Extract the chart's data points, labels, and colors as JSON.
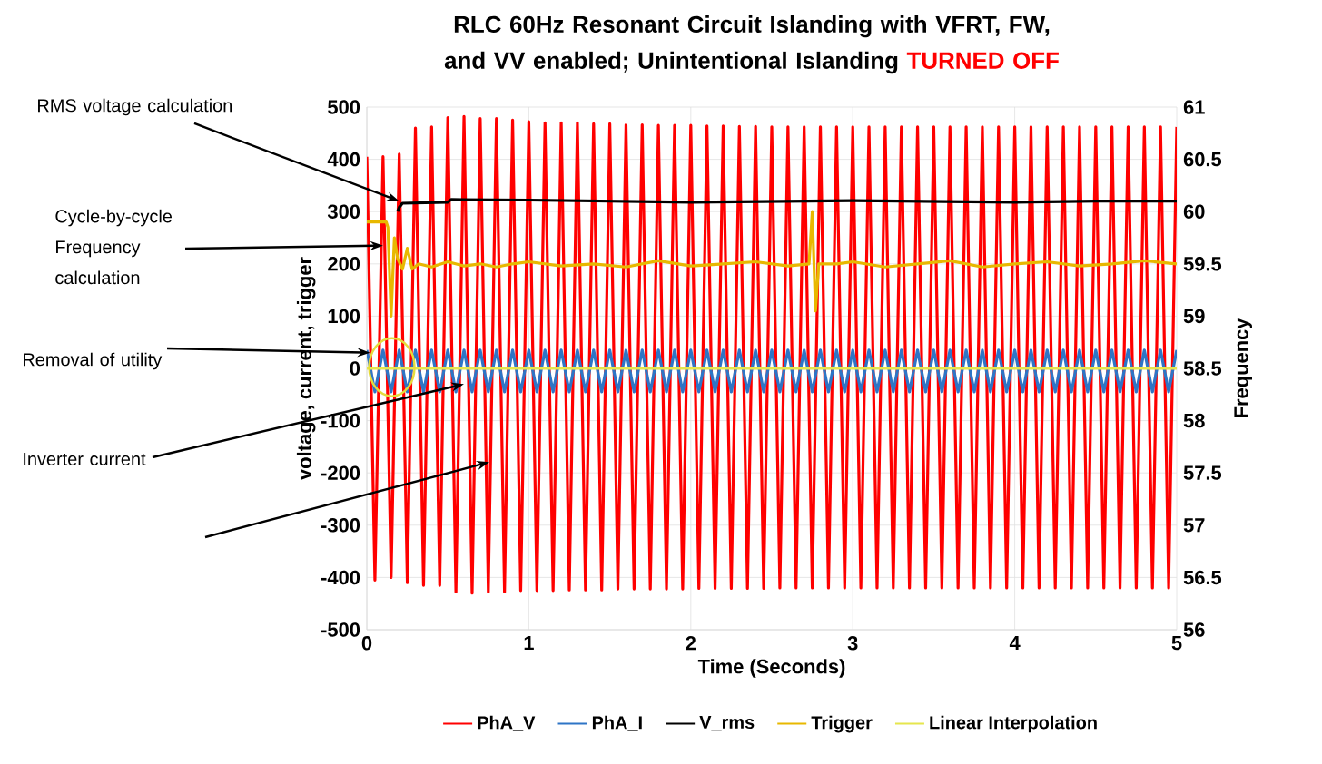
{
  "chart_data": {
    "type": "line",
    "title": "RLC 60Hz Resonant Circuit Islanding with VFRT, FW, and VV enabled; Unintentional Islanding",
    "subtitle": "TURNED OFF",
    "xlabel": "Time (Seconds)",
    "ylabel": "voltage, current, trigger",
    "y2label": "Frequency",
    "x": [
      0,
      0.05,
      0.1,
      0.15,
      0.2,
      0.25,
      0.3,
      0.35,
      0.4,
      0.45,
      0.5,
      0.55,
      0.6,
      0.65,
      0.7,
      0.75,
      0.8,
      0.85,
      0.9,
      0.95,
      1.0,
      1.05,
      1.1,
      1.15,
      1.2,
      1.25,
      1.3,
      1.35,
      1.4,
      1.45,
      1.5,
      1.55,
      1.6,
      1.65,
      1.7,
      1.75,
      1.8,
      1.85,
      1.9,
      1.95,
      2.0,
      2.05,
      2.1,
      2.15,
      2.2,
      2.25,
      2.3,
      2.35,
      2.4,
      2.45,
      2.5,
      2.55,
      2.6,
      2.65,
      2.7,
      2.75,
      2.8,
      2.85,
      2.9,
      2.95,
      3.0,
      3.05,
      3.1,
      3.15,
      3.2,
      3.25,
      3.3,
      3.35,
      3.4,
      3.45,
      3.5,
      3.55,
      3.6,
      3.65,
      3.7,
      3.75,
      3.8,
      3.85,
      3.9,
      3.95,
      4.0,
      4.05,
      4.1,
      4.15,
      4.2,
      4.25,
      4.3,
      4.35,
      4.4,
      4.45,
      4.5,
      4.55,
      4.6,
      4.65,
      4.7,
      4.75,
      4.8,
      4.85,
      4.9,
      4.95,
      5.0
    ],
    "series": [
      {
        "name": "PhA_V",
        "color": "#ff0000",
        "values": [
          405,
          -405,
          405,
          -400,
          410,
          -410,
          460,
          -415,
          462,
          -415,
          480,
          -428,
          482,
          -430,
          478,
          -428,
          478,
          -428,
          475,
          -425,
          472,
          -425,
          470,
          -425,
          470,
          -424,
          470,
          -424,
          468,
          -424,
          468,
          -422,
          466,
          -422,
          466,
          -422,
          465,
          -422,
          465,
          -422,
          465,
          -421,
          464,
          -421,
          464,
          -421,
          463,
          -421,
          463,
          -421,
          462,
          -420,
          462,
          -420,
          462,
          -420,
          462,
          -420,
          462,
          -420,
          462,
          -420,
          462,
          -420,
          462,
          -420,
          462,
          -420,
          462,
          -420,
          462,
          -420,
          462,
          -420,
          462,
          -420,
          462,
          -420,
          462,
          -420,
          462,
          -420,
          462,
          -420,
          462,
          -420,
          462,
          -420,
          462,
          -420,
          462,
          -420,
          462,
          -420,
          462,
          -420,
          462,
          -420,
          462,
          -420,
          462
        ]
      },
      {
        "name": "PhA_I",
        "color": "#2e75c6",
        "values": [
          35,
          -45,
          35,
          -45,
          35,
          -45,
          35,
          -45,
          35,
          -45,
          35,
          -45,
          35,
          -45,
          35,
          -45,
          35,
          -45,
          35,
          -45,
          35,
          -45,
          35,
          -45,
          35,
          -45,
          35,
          -45,
          35,
          -45,
          35,
          -45,
          35,
          -45,
          35,
          -45,
          35,
          -45,
          35,
          -45,
          35,
          -45,
          35,
          -45,
          35,
          -45,
          35,
          -45,
          35,
          -45,
          35,
          -45,
          35,
          -45,
          35,
          -45,
          35,
          -45,
          35,
          -45,
          35,
          -45,
          35,
          -45,
          35,
          -45,
          35,
          -45,
          35,
          -45,
          35,
          -45,
          35,
          -45,
          35,
          -45,
          35,
          -45,
          35,
          -45,
          35,
          -45,
          35,
          -45,
          35,
          -45,
          35,
          -45,
          35,
          -45,
          35,
          -45,
          35,
          -45,
          35,
          -45,
          35,
          -45,
          35,
          -45,
          35
        ]
      },
      {
        "name": "V_rms",
        "color": "#000000",
        "x": [
          0.19,
          0.2,
          0.22,
          0.5,
          0.52,
          1.0,
          2.0,
          3.0,
          4.0,
          4.5,
          5.0
        ],
        "values": [
          300,
          308,
          316,
          318,
          323,
          322,
          318,
          321,
          318,
          320,
          320
        ]
      },
      {
        "name": "Trigger",
        "color": "#e8b800",
        "axis": "y2",
        "x": [
          0,
          0.12,
          0.13,
          0.15,
          0.17,
          0.19,
          0.22,
          0.25,
          0.28,
          0.32,
          0.4,
          0.5,
          0.6,
          0.7,
          0.8,
          0.9,
          1.0,
          1.2,
          1.4,
          1.6,
          1.8,
          2.0,
          2.2,
          2.4,
          2.6,
          2.73,
          2.75,
          2.77,
          2.79,
          2.9,
          3.0,
          3.2,
          3.4,
          3.6,
          3.8,
          4.0,
          4.2,
          4.4,
          4.6,
          4.8,
          5.0
        ],
        "values": [
          59.9,
          59.9,
          59.85,
          59.0,
          59.75,
          59.55,
          59.45,
          59.65,
          59.45,
          59.5,
          59.47,
          59.52,
          59.48,
          59.5,
          59.47,
          59.5,
          59.52,
          59.48,
          59.5,
          59.47,
          59.53,
          59.48,
          59.5,
          59.52,
          59.48,
          59.5,
          60.0,
          59.05,
          59.5,
          59.5,
          59.52,
          59.47,
          59.5,
          59.53,
          59.47,
          59.5,
          59.52,
          59.48,
          59.5,
          59.53,
          59.5
        ]
      },
      {
        "name": "Linear Interpolation",
        "color": "#e6e64d",
        "x": [
          0,
          5
        ],
        "values": [
          0,
          0
        ]
      }
    ],
    "xlim": [
      0,
      5
    ],
    "xticks": [
      0,
      1,
      2,
      3,
      4,
      5
    ],
    "ylim": [
      -500,
      500
    ],
    "yticks": [
      -500,
      -400,
      -300,
      -200,
      -100,
      0,
      100,
      200,
      300,
      400,
      500
    ],
    "y2lim": [
      56,
      61
    ],
    "y2ticks": [
      56,
      56.5,
      57,
      57.5,
      58,
      58.5,
      59,
      59.5,
      60,
      60.5,
      61
    ],
    "grid": true,
    "legend": "bottom",
    "line_style": "solid",
    "annotations": [
      {
        "text": "RMS voltage calculation",
        "x": 0.2,
        "y": 320
      },
      {
        "text": "Cycle-by-cycle Frequency calculation",
        "x": 0.1,
        "y": 235
      },
      {
        "text": "Removal of utility",
        "x": 0.02,
        "y": 30
      },
      {
        "text": "Inverter current",
        "x": 0.6,
        "y": -30
      }
    ]
  }
}
